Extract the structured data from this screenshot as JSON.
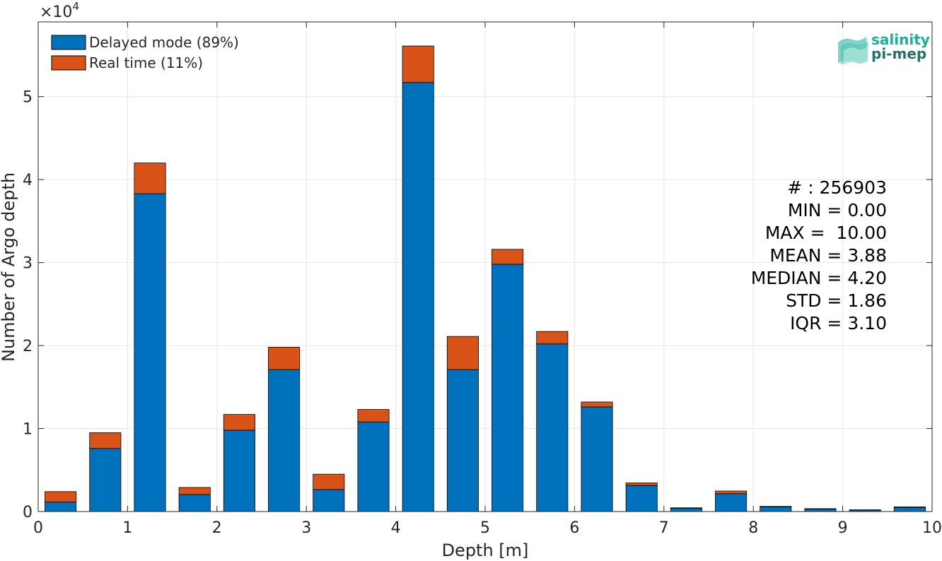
{
  "chart_data": {
    "type": "bar",
    "stacked": true,
    "bin_width": 0.5,
    "x": [
      0.25,
      0.75,
      1.25,
      1.75,
      2.25,
      2.75,
      3.25,
      3.75,
      4.25,
      4.75,
      5.25,
      5.75,
      6.25,
      6.75,
      7.25,
      7.75,
      8.25,
      8.75,
      9.25,
      9.75
    ],
    "series": [
      {
        "name": "Delayed mode (89%)",
        "color": "#0072BD",
        "values": [
          1150,
          7600,
          38300,
          2050,
          9800,
          17100,
          2650,
          10800,
          51700,
          17100,
          29800,
          20200,
          12600,
          3150,
          380,
          2150,
          560,
          310,
          170,
          500
        ]
      },
      {
        "name": "Real time (11%)",
        "color": "#D95319",
        "values": [
          1250,
          1900,
          3700,
          850,
          1900,
          2700,
          1850,
          1500,
          4400,
          4000,
          1800,
          1500,
          600,
          300,
          70,
          320,
          60,
          40,
          40,
          60
        ]
      }
    ],
    "xlabel": "Depth [m]",
    "ylabel": "Number of Argo depth",
    "xlim": [
      0,
      10
    ],
    "ylim": [
      0,
      59000
    ],
    "xticks": [
      0,
      1,
      2,
      3,
      4,
      5,
      6,
      7,
      8,
      9,
      10
    ],
    "yticks": [
      0,
      10000,
      20000,
      30000,
      40000,
      50000
    ],
    "ytick_labels": [
      "0",
      "1",
      "2",
      "3",
      "4",
      "5"
    ],
    "y_exponent_label": "×10",
    "y_exponent_power": "4",
    "grid": true,
    "legend_position": "top-left",
    "annotations": [
      "# : 256903",
      "MIN = 0.00",
      "MAX =  10.00",
      "MEAN = 3.88",
      "MEDIAN = 4.20",
      "STD = 1.86",
      "IQR = 3.10"
    ]
  },
  "logo": {
    "line1": "salinity",
    "line2": "pi-mep",
    "color_teal": "#1aaf9a",
    "color_dark": "#2b6f6a"
  }
}
